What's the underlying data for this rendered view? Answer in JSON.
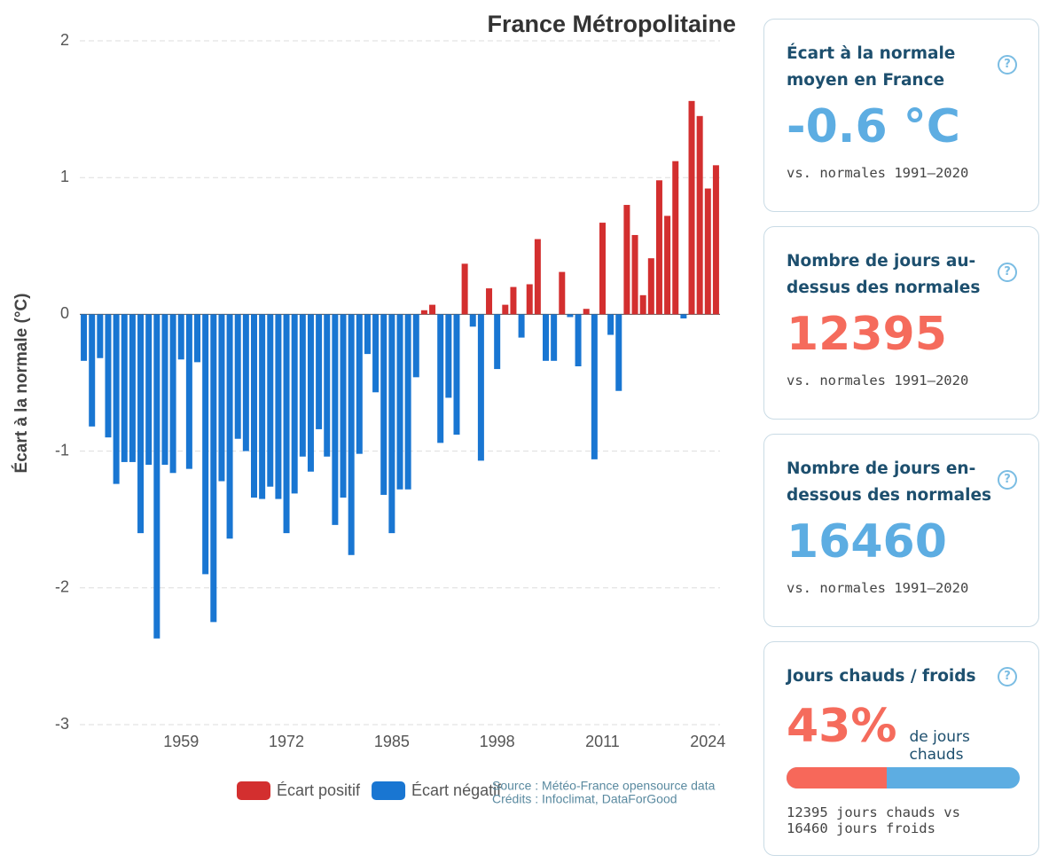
{
  "chart_data": {
    "type": "bar",
    "title": "France Métropolitaine",
    "y_label": "Écart à la normale (°C)",
    "categories": [
      null,
      null,
      null,
      null,
      null,
      null,
      null,
      null,
      null,
      null,
      null,
      null,
      "1959",
      null,
      null,
      null,
      null,
      null,
      null,
      null,
      null,
      null,
      null,
      null,
      null,
      "1972",
      null,
      null,
      null,
      null,
      null,
      null,
      null,
      null,
      null,
      null,
      null,
      null,
      "1985",
      null,
      null,
      null,
      null,
      null,
      null,
      null,
      null,
      null,
      null,
      null,
      null,
      "1998",
      null,
      null,
      null,
      null,
      null,
      null,
      null,
      null,
      null,
      null,
      null,
      null,
      "2011",
      null,
      null,
      null,
      null,
      null,
      null,
      null,
      null,
      null,
      null,
      null,
      null,
      "2024",
      null
    ],
    "values": [
      -0.34,
      -0.82,
      -0.32,
      -0.9,
      -1.24,
      -1.08,
      -1.08,
      -1.6,
      -1.1,
      -2.37,
      -1.1,
      -1.16,
      -0.33,
      -1.13,
      -0.35,
      -1.9,
      -2.25,
      -1.22,
      -1.64,
      -0.91,
      -1.0,
      -1.34,
      -1.35,
      -1.26,
      -1.35,
      -1.6,
      -1.31,
      -1.04,
      -1.15,
      -0.84,
      -1.04,
      -1.54,
      -1.34,
      -1.76,
      -1.02,
      -0.29,
      -0.57,
      -1.32,
      -1.6,
      -1.28,
      -1.28,
      -0.46,
      0.03,
      0.07,
      -0.94,
      -0.61,
      -0.88,
      0.37,
      -0.09,
      -1.07,
      0.19,
      -0.4,
      0.07,
      0.2,
      -0.17,
      0.22,
      0.55,
      -0.34,
      -0.34,
      0.31,
      -0.02,
      -0.38,
      0.04,
      -1.06,
      0.67,
      -0.15,
      -0.56,
      0.8,
      0.58,
      0.14,
      0.41,
      0.98,
      0.72,
      1.12,
      -0.03,
      1.56,
      1.45,
      0.92,
      1.09
    ],
    "positive_color": "#d32f2f",
    "negative_color": "#1976d2",
    "legend": [
      {
        "name": "Écart positif",
        "color": "#d32f2f"
      },
      {
        "name": "Écart négatif",
        "color": "#1976d2"
      }
    ],
    "ylim": [
      -3,
      2
    ],
    "yticks": [
      2,
      1,
      0,
      -1,
      -2,
      -3
    ],
    "grid": true,
    "source": [
      "Source : Météo-France opensource data",
      "Crédits : Infoclimat, DataForGood"
    ]
  },
  "cards": [
    {
      "title": "Écart à la normale moyen en France",
      "value": "-0.6 °C",
      "caption": "vs. normales 1991–2020"
    },
    {
      "title": "Nombre de jours au-dessus des normales",
      "value": "12395",
      "caption": "vs. normales 1991–2020"
    },
    {
      "title": "Nombre de jours en-dessous des normales",
      "value": "16460",
      "caption": "vs. normales 1991–2020"
    }
  ],
  "ratio_card": {
    "title": "Jours chauds / froids",
    "value": 43,
    "value_label": "43%",
    "unit": "de jours chauds",
    "lines": [
      "12395 jours chauds vs",
      "16460 jours froids"
    ]
  }
}
